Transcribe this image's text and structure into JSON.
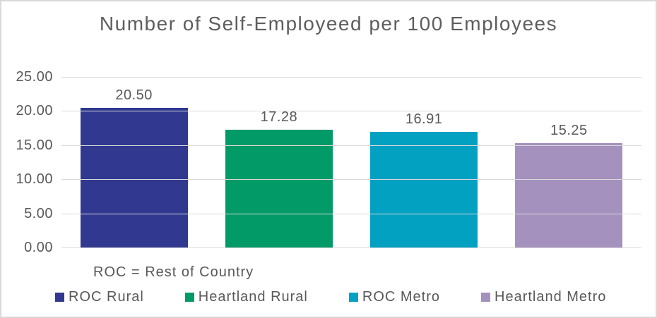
{
  "chart_data": {
    "type": "bar",
    "title": "Number of Self-Employeed per 100 Employees",
    "note": "ROC = Rest of Country",
    "categories": [
      "ROC Rural",
      "Heartland Rural",
      "ROC Metro",
      "Heartland Metro"
    ],
    "values": [
      20.5,
      17.28,
      16.91,
      15.25
    ],
    "value_labels": [
      "20.50",
      "17.28",
      "16.91",
      "15.25"
    ],
    "bar_colors": [
      "#303890",
      "#029A66",
      "#02A0C1",
      "#A591BD"
    ],
    "xlabel": "",
    "ylabel": "",
    "ylim": [
      0,
      25
    ],
    "ytick_values": [
      25,
      20,
      15,
      10,
      5,
      0
    ],
    "ytick_labels": [
      "25.00",
      "20.00",
      "15.00",
      "10.00",
      "5.00",
      "0.00"
    ],
    "grid": true,
    "grid_color": "#d9d9d9",
    "text_color": "#595959",
    "legend_position": "bottom",
    "legend": [
      {
        "label": "ROC Rural",
        "color": "#303890"
      },
      {
        "label": "Heartland Rural",
        "color": "#029A66"
      },
      {
        "label": "ROC Metro",
        "color": "#02A0C1"
      },
      {
        "label": "Heartland Metro",
        "color": "#A591BD"
      }
    ]
  }
}
